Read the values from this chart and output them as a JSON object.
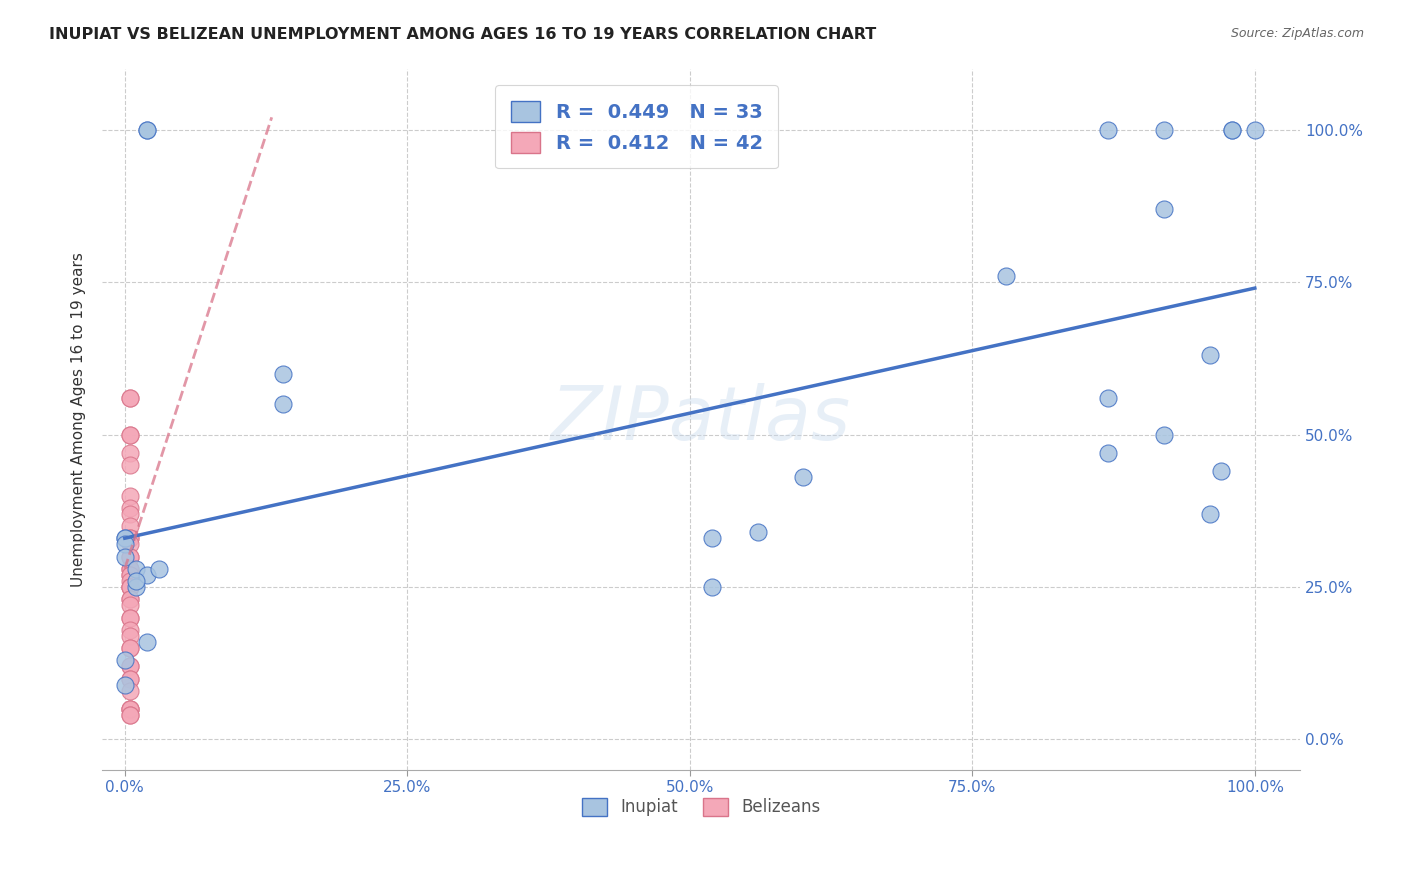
{
  "title": "INUPIAT VS BELIZEAN UNEMPLOYMENT AMONG AGES 16 TO 19 YEARS CORRELATION CHART",
  "source": "Source: ZipAtlas.com",
  "ylabel": "Unemployment Among Ages 16 to 19 years",
  "inupiat_R": 0.449,
  "inupiat_N": 33,
  "belizean_R": 0.412,
  "belizean_N": 42,
  "inupiat_color": "#a8c4e0",
  "belizean_color": "#f4a8b8",
  "inupiat_line_color": "#4472c4",
  "belizean_line_color": "#d9748a",
  "watermark": "ZIPatlas",
  "background_color": "#ffffff",
  "inupiat_x": [
    0.02,
    0.02,
    0.14,
    0.14,
    0.0,
    0.0,
    0.0,
    0.0,
    0.01,
    0.01,
    0.02,
    0.02,
    0.03,
    0.0,
    0.0,
    0.01,
    0.52,
    0.52,
    0.56,
    0.6,
    0.78,
    0.87,
    0.87,
    0.87,
    0.92,
    0.92,
    0.92,
    0.96,
    0.96,
    0.97,
    0.98,
    0.98,
    1.0
  ],
  "inupiat_y": [
    1.0,
    1.0,
    0.6,
    0.55,
    0.33,
    0.33,
    0.32,
    0.3,
    0.28,
    0.25,
    0.27,
    0.16,
    0.28,
    0.13,
    0.09,
    0.26,
    0.25,
    0.33,
    0.34,
    0.43,
    0.76,
    0.47,
    0.56,
    1.0,
    0.5,
    0.87,
    1.0,
    0.37,
    0.63,
    0.44,
    1.0,
    1.0,
    1.0
  ],
  "belizean_x": [
    0.005,
    0.005,
    0.005,
    0.005,
    0.005,
    0.005,
    0.005,
    0.005,
    0.005,
    0.005,
    0.005,
    0.005,
    0.005,
    0.005,
    0.005,
    0.005,
    0.005,
    0.005,
    0.005,
    0.005,
    0.005,
    0.005,
    0.005,
    0.005,
    0.005,
    0.005,
    0.005,
    0.005,
    0.005,
    0.005,
    0.005,
    0.005,
    0.005,
    0.005,
    0.005,
    0.005,
    0.005,
    0.005,
    0.005,
    0.005,
    0.005,
    0.005
  ],
  "belizean_y": [
    0.56,
    0.56,
    0.5,
    0.5,
    0.47,
    0.45,
    0.4,
    0.38,
    0.37,
    0.35,
    0.33,
    0.33,
    0.32,
    0.3,
    0.3,
    0.28,
    0.28,
    0.27,
    0.27,
    0.26,
    0.25,
    0.25,
    0.25,
    0.23,
    0.23,
    0.22,
    0.2,
    0.2,
    0.18,
    0.17,
    0.15,
    0.15,
    0.12,
    0.12,
    0.1,
    0.1,
    0.08,
    0.05,
    0.05,
    0.05,
    0.04,
    0.04
  ],
  "inupiat_trendline_x": [
    0.0,
    1.0
  ],
  "inupiat_trendline_y": [
    0.33,
    0.74
  ],
  "belizean_trendline_x": [
    0.0,
    0.13
  ],
  "belizean_trendline_y": [
    0.28,
    1.02
  ],
  "xlim": [
    -0.02,
    1.04
  ],
  "ylim": [
    -0.05,
    1.1
  ],
  "grid_ticks": [
    0.0,
    0.25,
    0.5,
    0.75,
    1.0
  ]
}
